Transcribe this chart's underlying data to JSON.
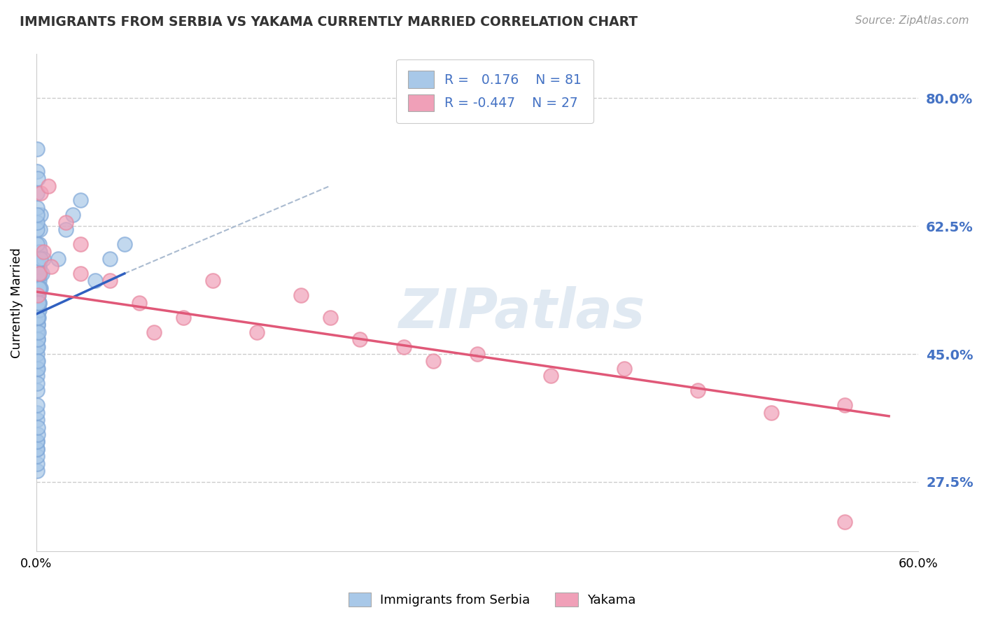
{
  "title": "IMMIGRANTS FROM SERBIA VS YAKAMA CURRENTLY MARRIED CORRELATION CHART",
  "source": "Source: ZipAtlas.com",
  "ylabel": "Currently Married",
  "xlim": [
    0.0,
    60.0
  ],
  "ylim": [
    18.0,
    86.0
  ],
  "yticks": [
    27.5,
    45.0,
    62.5,
    80.0
  ],
  "ytick_labels": [
    "27.5%",
    "45.0%",
    "62.5%",
    "80.0%"
  ],
  "xtick_vals": [
    0.0,
    60.0
  ],
  "xtick_labels": [
    "0.0%",
    "60.0%"
  ],
  "watermark": "ZIPatlas",
  "legend_label1": "Immigrants from Serbia",
  "legend_label2": "Yakama",
  "r1": 0.176,
  "n1": 81,
  "r2": -0.447,
  "n2": 27,
  "blue_color": "#a8c8e8",
  "pink_color": "#f0a0b8",
  "blue_line_color": "#3060c0",
  "pink_line_color": "#e05878",
  "blue_edge_color": "#80a8d8",
  "pink_edge_color": "#e888a0",
  "serbia_x": [
    0.05,
    0.08,
    0.1,
    0.12,
    0.15,
    0.18,
    0.2,
    0.22,
    0.25,
    0.28,
    0.05,
    0.07,
    0.1,
    0.13,
    0.16,
    0.19,
    0.22,
    0.25,
    0.06,
    0.08,
    0.11,
    0.14,
    0.17,
    0.2,
    0.23,
    0.05,
    0.07,
    0.09,
    0.12,
    0.15,
    0.18,
    0.21,
    0.05,
    0.06,
    0.08,
    0.1,
    0.13,
    0.16,
    0.05,
    0.06,
    0.07,
    0.09,
    0.11,
    0.05,
    0.06,
    0.08,
    0.05,
    0.06,
    0.05,
    1.5,
    2.0,
    2.5,
    3.0,
    4.0,
    5.0,
    6.0,
    0.3,
    0.4,
    0.5,
    0.05,
    0.06,
    0.05,
    0.07,
    0.09,
    0.05,
    0.06,
    0.07,
    0.08,
    0.1,
    0.15,
    0.2,
    0.25,
    0.3,
    0.05,
    0.06,
    0.07,
    0.08,
    0.09,
    0.1
  ],
  "serbia_y": [
    54,
    57,
    56,
    55,
    58,
    60,
    59,
    57,
    62,
    64,
    50,
    52,
    53,
    54,
    56,
    55,
    57,
    59,
    48,
    50,
    49,
    51,
    53,
    52,
    54,
    46,
    48,
    47,
    49,
    50,
    51,
    52,
    43,
    44,
    45,
    46,
    47,
    48,
    40,
    42,
    41,
    43,
    44,
    36,
    37,
    38,
    32,
    33,
    29,
    58,
    62,
    64,
    66,
    55,
    58,
    60,
    54,
    56,
    58,
    70,
    73,
    65,
    67,
    69,
    60,
    62,
    63,
    64,
    50,
    52,
    54,
    56,
    58,
    30,
    31,
    32,
    33,
    34,
    35
  ],
  "yakama_x": [
    0.1,
    0.2,
    0.5,
    1.0,
    2.0,
    3.0,
    5.0,
    7.0,
    10.0,
    12.0,
    15.0,
    18.0,
    20.0,
    22.0,
    25.0,
    27.0,
    30.0,
    35.0,
    40.0,
    45.0,
    50.0,
    55.0,
    0.3,
    0.8,
    3.0,
    8.0,
    55.0
  ],
  "yakama_y": [
    53,
    56,
    59,
    57,
    63,
    60,
    55,
    52,
    50,
    55,
    48,
    53,
    50,
    47,
    46,
    44,
    45,
    42,
    43,
    40,
    37,
    38,
    67,
    68,
    56,
    48,
    22
  ],
  "serbia_line_x": [
    0.05,
    6.0
  ],
  "serbia_line_y": [
    50.5,
    56.0
  ],
  "yakama_line_x": [
    0.05,
    58.0
  ],
  "yakama_line_y": [
    53.5,
    36.5
  ],
  "dashed_line_x": [
    6.0,
    20.0
  ],
  "dashed_line_y": [
    56.0,
    68.0
  ]
}
